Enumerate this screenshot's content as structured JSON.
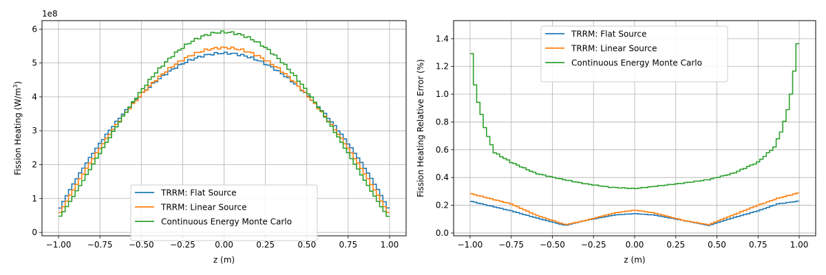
{
  "chart_data": [
    {
      "type": "line",
      "step": true,
      "xlabel": "z (m)",
      "ylabel": "Fission Heating (W/m³)",
      "ylabel_main": "Fission Heating (W/m",
      "ylabel_sup": "3",
      "ylabel_tail": ")",
      "offset_text": "1e8",
      "xlim": [
        -1.1,
        1.1
      ],
      "ylim": [
        -0.1,
        6.25
      ],
      "xticks": [
        -1.0,
        -0.75,
        -0.5,
        -0.25,
        0.0,
        0.25,
        0.5,
        0.75,
        1.0
      ],
      "xtick_labels": [
        "−1.00",
        "−0.75",
        "−0.50",
        "−0.25",
        "0.00",
        "0.25",
        "0.50",
        "0.75",
        "1.00"
      ],
      "yticks": [
        0,
        1,
        2,
        3,
        4,
        5,
        6
      ],
      "ytick_labels": [
        "0",
        "1",
        "2",
        "3",
        "4",
        "5",
        "6"
      ],
      "grid": true,
      "legend_position": "lower-center",
      "x_range": [
        -1.0,
        1.0
      ],
      "n_bins": 100,
      "series": [
        {
          "name": "TRRM: Flat Source",
          "color": "#1f77b4",
          "peak": 5.29,
          "edge": 0.3,
          "shape": "dome-flat"
        },
        {
          "name": "TRRM: Linear Source",
          "color": "#ff7f0e",
          "peak": 5.45,
          "edge": 0.25,
          "shape": "dome-mid"
        },
        {
          "name": "Continuous Energy Monte Carlo",
          "color": "#2ca02c",
          "peak": 5.91,
          "edge": 0.25,
          "shape": "dome-sharp"
        }
      ]
    },
    {
      "type": "line",
      "step": true,
      "xlabel": "z (m)",
      "ylabel": "Fission Heating Relative Error (%)",
      "xlim": [
        -1.1,
        1.1
      ],
      "ylim": [
        -0.02,
        1.53
      ],
      "xticks": [
        -1.0,
        -0.75,
        -0.5,
        -0.25,
        0.0,
        0.25,
        0.5,
        0.75,
        1.0
      ],
      "xtick_labels": [
        "−1.00",
        "−0.75",
        "−0.50",
        "−0.25",
        "0.00",
        "0.25",
        "0.50",
        "0.75",
        "1.00"
      ],
      "yticks": [
        0.0,
        0.2,
        0.4,
        0.6,
        0.8,
        1.0,
        1.2,
        1.4
      ],
      "ytick_labels": [
        "0.0",
        "0.2",
        "0.4",
        "0.6",
        "0.8",
        "1.0",
        "1.2",
        "1.4"
      ],
      "grid": true,
      "legend_position": "top-center",
      "x_range": [
        -1.0,
        1.0
      ],
      "n_bins": 100,
      "series": [
        {
          "name": "TRRM: Flat Source",
          "color": "#1f77b4",
          "points": [
            [
              -1.0,
              0.23
            ],
            [
              -0.75,
              0.16
            ],
            [
              -0.6,
              0.11
            ],
            [
              -0.42,
              0.055
            ],
            [
              -0.3,
              0.09
            ],
            [
              -0.12,
              0.13
            ],
            [
              0.0,
              0.14
            ],
            [
              0.12,
              0.13
            ],
            [
              0.3,
              0.09
            ],
            [
              0.45,
              0.055
            ],
            [
              0.6,
              0.11
            ],
            [
              0.75,
              0.16
            ],
            [
              0.87,
              0.21
            ],
            [
              1.0,
              0.23
            ]
          ]
        },
        {
          "name": "TRRM: Linear Source",
          "color": "#ff7f0e",
          "points": [
            [
              -1.0,
              0.285
            ],
            [
              -0.75,
              0.21
            ],
            [
              -0.6,
              0.13
            ],
            [
              -0.42,
              0.06
            ],
            [
              -0.3,
              0.09
            ],
            [
              -0.12,
              0.145
            ],
            [
              0.0,
              0.165
            ],
            [
              0.12,
              0.145
            ],
            [
              0.3,
              0.09
            ],
            [
              0.45,
              0.06
            ],
            [
              0.6,
              0.13
            ],
            [
              0.75,
              0.2
            ],
            [
              0.87,
              0.25
            ],
            [
              1.0,
              0.29
            ]
          ]
        },
        {
          "name": "Continuous Energy Monte Carlo",
          "color": "#2ca02c",
          "points": [
            [
              -1.0,
              1.43
            ],
            [
              -0.98,
              1.14
            ],
            [
              -0.95,
              0.94
            ],
            [
              -0.9,
              0.72
            ],
            [
              -0.85,
              0.58
            ],
            [
              -0.75,
              0.51
            ],
            [
              -0.6,
              0.43
            ],
            [
              -0.45,
              0.39
            ],
            [
              -0.3,
              0.355
            ],
            [
              -0.15,
              0.33
            ],
            [
              0.0,
              0.32
            ],
            [
              0.15,
              0.34
            ],
            [
              0.3,
              0.36
            ],
            [
              0.45,
              0.385
            ],
            [
              0.6,
              0.43
            ],
            [
              0.75,
              0.51
            ],
            [
              0.85,
              0.62
            ],
            [
              0.9,
              0.76
            ],
            [
              0.94,
              0.93
            ],
            [
              0.97,
              1.16
            ],
            [
              1.0,
              1.47
            ]
          ]
        }
      ]
    }
  ]
}
